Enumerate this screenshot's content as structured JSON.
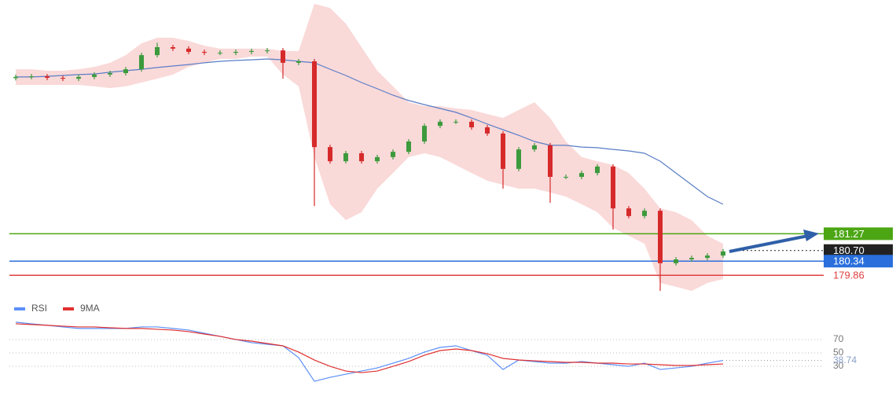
{
  "chart_data": [
    {
      "type": "candlestick",
      "ylim": [
        179.2,
        189.2
      ],
      "up_color": "#3d9a3d",
      "down_color": "#d62a2a",
      "open": [
        186.55,
        186.59,
        186.61,
        186.56,
        186.53,
        186.59,
        186.67,
        186.72,
        186.85,
        187.33,
        187.6,
        187.55,
        187.44,
        187.41,
        187.41,
        187.44,
        187.47,
        187.49,
        187.07,
        187.12,
        184.21,
        183.73,
        184.0,
        183.73,
        183.87,
        184.05,
        184.4,
        184.93,
        185.07,
        185.07,
        184.88,
        184.67,
        183.47,
        184.13,
        184.27,
        183.2,
        183.2,
        183.33,
        183.55,
        182.13,
        181.87,
        182.05,
        180.27,
        180.4,
        180.45,
        180.53
      ],
      "high": [
        186.67,
        186.69,
        186.69,
        186.64,
        186.67,
        186.75,
        186.8,
        186.93,
        187.41,
        187.75,
        187.68,
        187.63,
        187.52,
        187.49,
        187.52,
        187.55,
        187.57,
        187.57,
        187.2,
        187.2,
        184.29,
        184.08,
        184.08,
        183.95,
        184.13,
        184.48,
        185.01,
        185.15,
        185.15,
        185.15,
        184.96,
        184.75,
        184.21,
        184.35,
        184.35,
        183.28,
        183.41,
        183.63,
        183.63,
        182.21,
        182.13,
        182.13,
        180.48,
        180.53,
        180.61,
        180.75
      ],
      "low": [
        186.47,
        186.51,
        186.48,
        186.45,
        186.45,
        186.51,
        186.59,
        186.64,
        186.77,
        187.25,
        187.47,
        187.36,
        187.33,
        187.33,
        187.33,
        187.36,
        187.39,
        186.53,
        186.99,
        182.21,
        183.65,
        183.65,
        183.65,
        183.65,
        183.79,
        183.97,
        184.32,
        184.85,
        184.99,
        184.8,
        184.59,
        182.8,
        183.39,
        184.05,
        182.32,
        183.12,
        183.12,
        183.25,
        181.41,
        181.79,
        181.79,
        179.33,
        180.19,
        180.32,
        180.37,
        180.45
      ],
      "close": [
        186.59,
        186.61,
        186.56,
        186.53,
        186.59,
        186.67,
        186.72,
        186.85,
        187.33,
        187.6,
        187.55,
        187.44,
        187.41,
        187.41,
        187.44,
        187.47,
        187.49,
        187.07,
        187.12,
        184.21,
        183.73,
        184.0,
        183.73,
        183.87,
        184.05,
        184.4,
        184.93,
        185.07,
        185.07,
        184.88,
        184.67,
        183.47,
        184.13,
        184.27,
        183.2,
        183.2,
        183.33,
        183.55,
        182.13,
        181.87,
        182.05,
        180.27,
        180.4,
        180.45,
        180.53,
        180.67
      ],
      "bands": {
        "color": "#f9cfcf",
        "upper": [
          186.85,
          186.85,
          186.8,
          186.8,
          186.85,
          186.93,
          187.07,
          187.33,
          187.73,
          187.92,
          187.92,
          187.81,
          187.65,
          187.55,
          187.55,
          187.55,
          187.55,
          187.47,
          187.47,
          189.07,
          188.93,
          188.4,
          187.6,
          186.8,
          186.27,
          185.73,
          185.6,
          185.6,
          185.52,
          185.47,
          185.33,
          185.2,
          185.47,
          185.73,
          185.2,
          184.4,
          183.87,
          183.73,
          183.6,
          183.33,
          182.8,
          182.13,
          182.0,
          181.73,
          181.2,
          180.93
        ],
        "lower": [
          186.32,
          186.32,
          186.32,
          186.32,
          186.32,
          186.27,
          186.21,
          186.27,
          186.4,
          186.53,
          186.67,
          186.93,
          187.07,
          187.2,
          187.2,
          187.28,
          187.28,
          186.67,
          186.27,
          183.87,
          182.27,
          181.73,
          182.0,
          182.8,
          183.33,
          183.87,
          184.0,
          183.87,
          183.6,
          183.33,
          183.07,
          182.93,
          182.8,
          182.8,
          182.67,
          182.53,
          182.27,
          182.0,
          181.47,
          181.2,
          180.93,
          179.6,
          179.47,
          179.33,
          179.6,
          179.73
        ]
      },
      "ma": {
        "color": "#5a7ec6",
        "values": [
          186.59,
          186.59,
          186.61,
          186.64,
          186.67,
          186.69,
          186.75,
          186.8,
          186.85,
          186.91,
          186.96,
          187.01,
          187.07,
          187.12,
          187.15,
          187.17,
          187.2,
          187.17,
          187.12,
          187.07,
          186.85,
          186.64,
          186.4,
          186.19,
          185.97,
          185.79,
          185.65,
          185.52,
          185.39,
          185.2,
          184.99,
          184.8,
          184.61,
          184.4,
          184.27,
          184.27,
          184.21,
          184.19,
          184.13,
          184.08,
          184.0,
          183.73,
          183.33,
          182.93,
          182.53,
          182.27
        ]
      },
      "levels": [
        {
          "value": 181.27,
          "label": "181.27",
          "color": "#4ca614",
          "boxed": true,
          "dashed": false
        },
        {
          "value": 180.7,
          "label": "180.70",
          "color": "#222222",
          "boxed": true,
          "dashed": true
        },
        {
          "value": 180.34,
          "label": "180.34",
          "color": "#2a6fdc",
          "boxed": true,
          "dashed": false
        },
        {
          "value": 179.86,
          "label": "179.86",
          "color": "#e04040",
          "boxed": false,
          "dashed": false
        }
      ]
    },
    {
      "type": "line",
      "ylim": [
        -4,
        131
      ],
      "yticks": [
        30,
        50,
        70
      ],
      "grid": true,
      "series": [
        {
          "name": "RSI",
          "color": "#5b8ff9",
          "values": [
            95.9,
            93.5,
            91.2,
            88.8,
            86.5,
            86.5,
            86.5,
            86.5,
            88.8,
            88.8,
            86.5,
            84.1,
            79.4,
            74.7,
            70.0,
            65.3,
            62.9,
            60.6,
            42.9,
            7.6,
            13.5,
            18.2,
            22.9,
            27.6,
            34.7,
            41.8,
            51.2,
            58.2,
            60.6,
            53.5,
            46.5,
            25.3,
            39.4,
            37.1,
            34.7,
            34.7,
            37.1,
            34.7,
            32.4,
            30.0,
            34.7,
            25.3,
            27.6,
            30.0,
            34.7,
            38.74
          ]
        },
        {
          "name": "9MA",
          "color": "#e03030",
          "values": [
            93.5,
            92.4,
            91.2,
            90.0,
            88.8,
            88.8,
            87.6,
            86.5,
            86.5,
            85.3,
            84.1,
            81.8,
            78.2,
            74.7,
            70.0,
            67.6,
            64.1,
            60.6,
            51.2,
            39.4,
            30.0,
            22.9,
            20.6,
            22.9,
            30.0,
            37.1,
            46.5,
            53.5,
            55.9,
            53.5,
            48.8,
            41.8,
            39.4,
            38.2,
            37.1,
            35.9,
            35.9,
            34.7,
            34.7,
            33.5,
            33.5,
            32.4,
            31.2,
            31.2,
            32.4,
            33.5
          ]
        }
      ]
    }
  ]
}
